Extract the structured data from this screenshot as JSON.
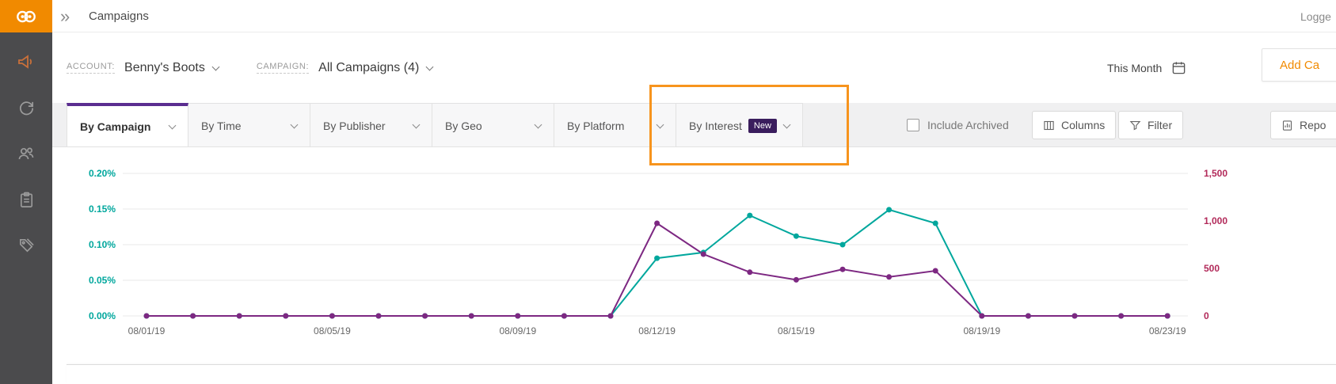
{
  "header": {
    "title": "Campaigns",
    "expand_icon_glyph": "»",
    "logged_in_text": "Logge"
  },
  "sidebar": {
    "icons": [
      "amplify-megaphone-icon",
      "sync-arrows-icon",
      "audience-people-icon",
      "clipboard-icon",
      "billing-tag-icon"
    ]
  },
  "filter_bar": {
    "account_label": "ACCOUNT:",
    "account_value": "Benny's Boots",
    "campaign_label": "CAMPAIGN:",
    "campaign_value": "All Campaigns (4)",
    "date_range": "This Month",
    "add_campaign_label": "Add Ca"
  },
  "tabs": [
    {
      "label": "By Campaign",
      "active": true
    },
    {
      "label": "By Time",
      "active": false
    },
    {
      "label": "By Publisher",
      "active": false
    },
    {
      "label": "By Geo",
      "active": false
    },
    {
      "label": "By Platform",
      "active": false
    },
    {
      "label": "By Interest",
      "badge": "New",
      "active": false
    }
  ],
  "toolbar": {
    "include_archived_label": "Include Archived",
    "columns_label": "Columns",
    "filter_label": "Filter",
    "reports_label": "Repo"
  },
  "colors": {
    "brand_orange": "#f18a00",
    "accent_purple": "#5b2d90",
    "badge_purple": "#3a1d5d",
    "teal": "#00a79d",
    "magenta_line": "#7d2882",
    "right_axis_red": "#b22a5a",
    "annotation_orange": "#f7941d"
  },
  "chart_data": {
    "type": "line",
    "x": [
      "08/01/19",
      "08/02/19",
      "08/03/19",
      "08/04/19",
      "08/05/19",
      "08/06/19",
      "08/07/19",
      "08/08/19",
      "08/09/19",
      "08/10/19",
      "08/11/19",
      "08/12/19",
      "08/13/19",
      "08/14/19",
      "08/15/19",
      "08/16/19",
      "08/17/19",
      "08/18/19",
      "08/19/19",
      "08/20/19",
      "08/21/19",
      "08/22/19",
      "08/23/19"
    ],
    "x_tick_labels": [
      "08/01/19",
      "08/05/19",
      "08/09/19",
      "08/12/19",
      "08/15/19",
      "08/19/19",
      "08/23/19"
    ],
    "x_tick_indices": [
      0,
      4,
      8,
      11,
      14,
      18,
      22
    ],
    "series": [
      {
        "name": "ctr_percent",
        "axis": "left",
        "color": "#00a79d",
        "values": [
          0,
          0,
          0,
          0,
          0,
          0,
          0,
          0,
          0,
          0,
          0,
          0.081,
          0.089,
          0.141,
          0.112,
          0.1,
          0.149,
          0.13,
          0,
          0,
          0,
          0,
          0
        ]
      },
      {
        "name": "clicks",
        "axis": "right",
        "color": "#7d2882",
        "values": [
          0,
          0,
          0,
          0,
          0,
          0,
          0,
          0,
          0,
          0,
          0,
          975,
          650,
          460,
          380,
          490,
          410,
          475,
          0,
          0,
          0,
          0,
          0
        ]
      }
    ],
    "left_axis": {
      "ticks": [
        "0.20%",
        "0.15%",
        "0.10%",
        "0.05%",
        "0.00%"
      ],
      "max": 0.2,
      "color": "#00a79d"
    },
    "right_axis": {
      "ticks": [
        "1,500",
        "1,000",
        "500",
        "0"
      ],
      "max": 1500,
      "color": "#b22a5a"
    },
    "grid": true,
    "legend": "none"
  }
}
